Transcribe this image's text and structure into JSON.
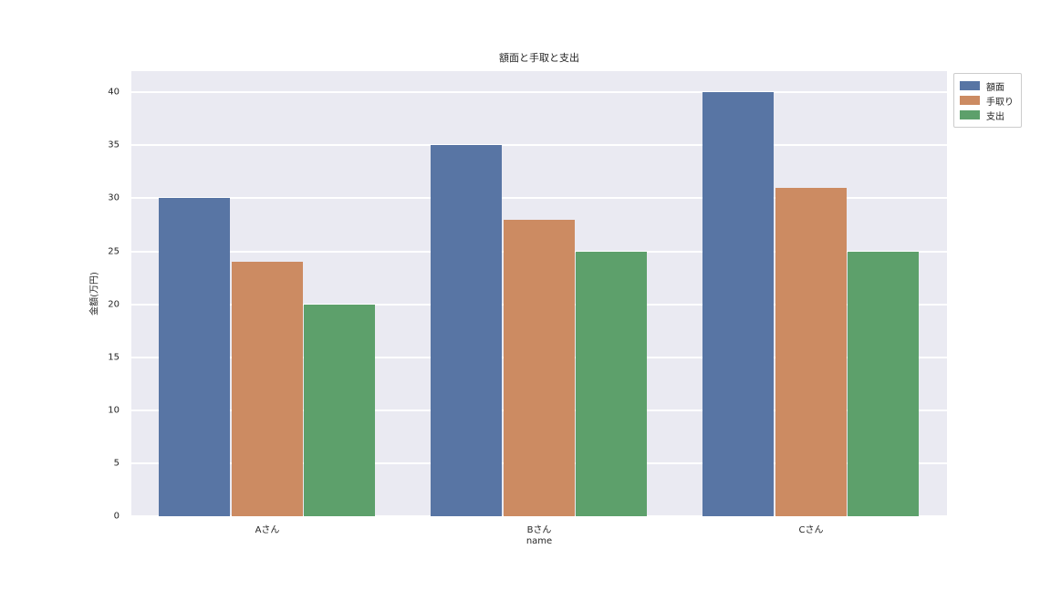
{
  "title": "額面と手取と支出",
  "chart_data": {
    "type": "bar",
    "categories": [
      "Aさん",
      "Bさん",
      "Cさん"
    ],
    "series": [
      {
        "name": "額面",
        "color": "#5875A4",
        "values": [
          30,
          35,
          40
        ]
      },
      {
        "name": "手取り",
        "color": "#CC8B62",
        "values": [
          24,
          28,
          31
        ]
      },
      {
        "name": "支出",
        "color": "#5DA06B",
        "values": [
          20,
          25,
          25
        ]
      }
    ],
    "title": "額面と手取と支出",
    "xlabel": "name",
    "ylabel": "金額(万円)",
    "ylim": [
      0,
      42
    ],
    "yticks": [
      0,
      5,
      10,
      15,
      20,
      25,
      30,
      35,
      40
    ],
    "grid": true,
    "legend_position": "upper right, outside axes",
    "plot_bg_color": "#EAEAF2",
    "grid_color": "#FFFFFF",
    "text_color": "#262626"
  }
}
